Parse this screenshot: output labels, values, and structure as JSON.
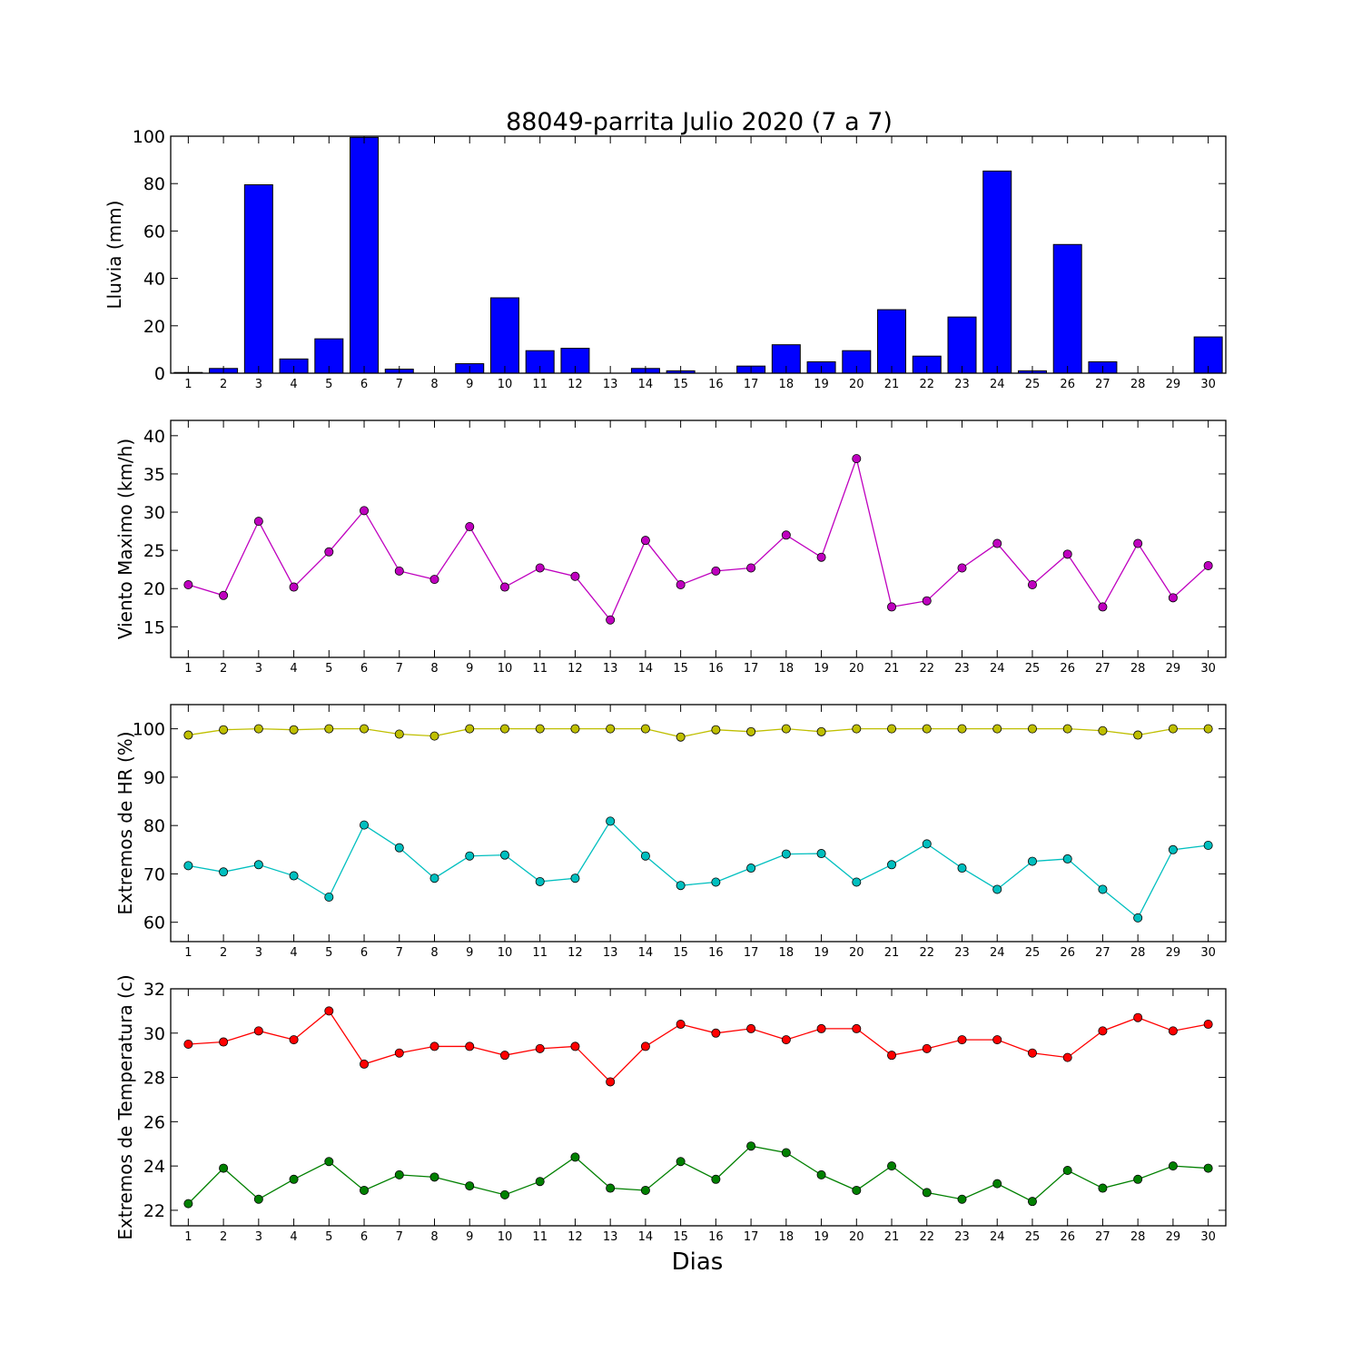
{
  "title": "88049-parrita Julio 2020  (7 a 7)",
  "xlabel": "Dias",
  "colors": {
    "rain": "#0000ff",
    "wind": "#bf00bf",
    "hr_max": "#bfbf00",
    "hr_min": "#00bfbf",
    "temp_max": "#ff0000",
    "temp_min": "#008000"
  },
  "chart_data": [
    {
      "type": "bar",
      "ylabel": "Lluvia (mm)",
      "ylim": [
        0,
        100
      ],
      "yticks": [
        0,
        20,
        40,
        60,
        80,
        100
      ],
      "categories": [
        "1",
        "2",
        "3",
        "4",
        "5",
        "6",
        "7",
        "8",
        "9",
        "10",
        "11",
        "12",
        "13",
        "14",
        "15",
        "16",
        "17",
        "18",
        "19",
        "20",
        "21",
        "22",
        "23",
        "24",
        "25",
        "26",
        "27",
        "28",
        "29",
        "30"
      ],
      "series": [
        {
          "values": [
            0.3,
            2,
            79.5,
            6,
            14.5,
            99.5,
            1.7,
            0,
            4,
            31.8,
            9.5,
            10.5,
            0,
            2,
            1,
            0,
            3,
            12,
            4.8,
            9.5,
            26.8,
            7.2,
            23.7,
            85.3,
            1,
            54.3,
            4.8,
            0,
            0,
            15.3
          ]
        }
      ]
    },
    {
      "type": "line",
      "ylabel": "Viento Maximo (km/h)",
      "ylim": [
        11,
        42
      ],
      "yticks": [
        15,
        20,
        25,
        30,
        35,
        40
      ],
      "categories": [
        "1",
        "2",
        "3",
        "4",
        "5",
        "6",
        "7",
        "8",
        "9",
        "10",
        "11",
        "12",
        "13",
        "14",
        "15",
        "16",
        "17",
        "18",
        "19",
        "20",
        "21",
        "22",
        "23",
        "24",
        "25",
        "26",
        "27",
        "28",
        "29",
        "30"
      ],
      "series": [
        {
          "values": [
            20.5,
            19.1,
            28.8,
            20.2,
            24.8,
            30.2,
            22.3,
            21.2,
            28.1,
            20.2,
            22.7,
            21.6,
            15.9,
            26.3,
            20.5,
            22.3,
            22.7,
            27.0,
            24.1,
            37.0,
            17.6,
            18.4,
            22.7,
            25.9,
            20.5,
            24.5,
            17.6,
            25.9,
            18.8,
            23.0
          ]
        }
      ]
    },
    {
      "type": "line",
      "ylabel": "Extremos de HR (%)",
      "ylim": [
        56,
        105
      ],
      "yticks": [
        60,
        70,
        80,
        90,
        100
      ],
      "categories": [
        "1",
        "2",
        "3",
        "4",
        "5",
        "6",
        "7",
        "8",
        "9",
        "10",
        "11",
        "12",
        "13",
        "14",
        "15",
        "16",
        "17",
        "18",
        "19",
        "20",
        "21",
        "22",
        "23",
        "24",
        "25",
        "26",
        "27",
        "28",
        "29",
        "30"
      ],
      "series": [
        {
          "values": [
            98.7,
            99.8,
            100,
            99.8,
            100,
            100,
            98.9,
            98.5,
            100,
            100,
            100,
            100,
            100,
            100,
            98.3,
            99.8,
            99.4,
            100,
            99.4,
            100,
            100,
            100,
            100,
            100,
            100,
            100,
            99.6,
            98.7,
            100,
            100
          ]
        },
        {
          "values": [
            71.7,
            70.4,
            71.9,
            69.6,
            65.2,
            80.1,
            75.4,
            69.1,
            73.7,
            73.9,
            68.4,
            69.1,
            80.9,
            73.7,
            67.6,
            68.3,
            71.2,
            74.1,
            74.2,
            68.3,
            71.9,
            76.2,
            71.2,
            66.8,
            72.6,
            73.1,
            66.8,
            60.9,
            75.0,
            75.9
          ]
        }
      ]
    },
    {
      "type": "line",
      "ylabel": "Extremos de Temperatura (c)",
      "ylim": [
        21.3,
        32
      ],
      "yticks": [
        22,
        24,
        26,
        28,
        30,
        32
      ],
      "categories": [
        "1",
        "2",
        "3",
        "4",
        "5",
        "6",
        "7",
        "8",
        "9",
        "10",
        "11",
        "12",
        "13",
        "14",
        "15",
        "16",
        "17",
        "18",
        "19",
        "20",
        "21",
        "22",
        "23",
        "24",
        "25",
        "26",
        "27",
        "28",
        "29",
        "30"
      ],
      "series": [
        {
          "values": [
            29.5,
            29.6,
            30.1,
            29.7,
            31.0,
            28.6,
            29.1,
            29.4,
            29.4,
            29.0,
            29.3,
            29.4,
            27.8,
            29.4,
            30.4,
            30.0,
            30.2,
            29.7,
            30.2,
            30.2,
            29.0,
            29.3,
            29.7,
            29.7,
            29.1,
            28.9,
            30.1,
            30.7,
            30.1,
            30.4
          ]
        },
        {
          "values": [
            22.3,
            23.9,
            22.5,
            23.4,
            24.2,
            22.9,
            23.6,
            23.5,
            23.1,
            22.7,
            23.3,
            24.4,
            23.0,
            22.9,
            24.2,
            23.4,
            24.9,
            24.6,
            23.6,
            22.9,
            24.0,
            22.8,
            22.5,
            23.2,
            22.4,
            23.8,
            23.0,
            23.4,
            24.0,
            23.9
          ]
        }
      ]
    }
  ]
}
